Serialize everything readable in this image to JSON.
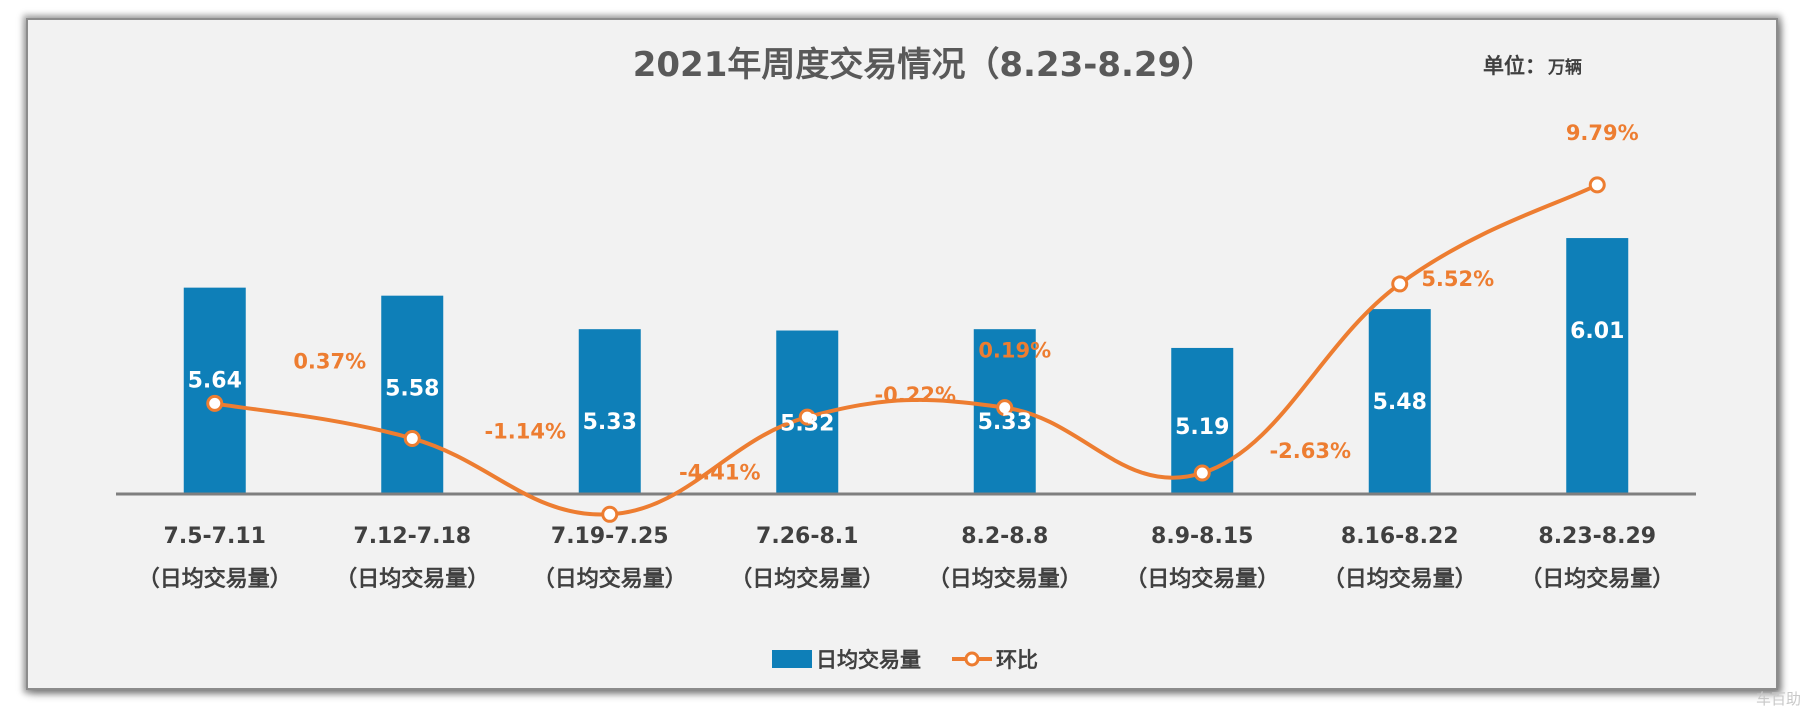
{
  "chart_data": {
    "type": "bar",
    "title": "2021年周度交易情况（8.23-8.29）",
    "unit_label": "单位：",
    "unit_value": "万辆",
    "categories": [
      "7.5-7.11",
      "7.12-7.18",
      "7.19-7.25",
      "7.26-8.1",
      "8.2-8.8",
      "8.9-8.15",
      "8.16-8.22",
      "8.23-8.29"
    ],
    "category_sublabel": "（日均交易量）",
    "series": [
      {
        "name": "日均交易量",
        "type": "bar",
        "color": "#0e7fb8",
        "values": [
          5.64,
          5.58,
          5.33,
          5.32,
          5.33,
          5.19,
          5.48,
          6.01
        ],
        "labels": [
          "5.64",
          "5.58",
          "5.33",
          "5.32",
          "5.33",
          "5.19",
          "5.48",
          "6.01"
        ]
      },
      {
        "name": "环比",
        "type": "line",
        "color": "#ed7d31",
        "values": [
          0.37,
          -1.14,
          -4.41,
          -0.22,
          0.19,
          -2.63,
          5.52,
          9.79
        ],
        "labels": [
          "0.37%",
          "-1.14%",
          "-4.41%",
          "-0.22%",
          "0.19%",
          "-2.63%",
          "5.52%",
          "9.79%"
        ]
      }
    ],
    "legend_position": "bottom"
  },
  "watermark": "车百助"
}
